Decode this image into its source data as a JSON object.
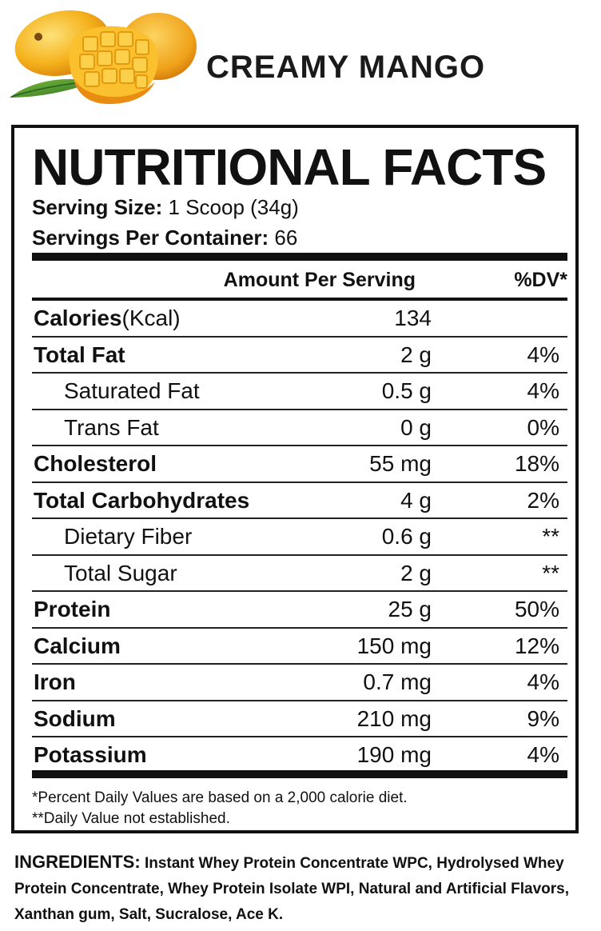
{
  "flavor": "CREAMY MANGO",
  "panel": {
    "title": "NUTRITIONAL FACTS",
    "serving_size_label": "Serving Size:",
    "serving_size_value": " 1 Scoop (34g)",
    "servings_label": "Servings Per Container:",
    "servings_value": " 66",
    "col_amount": "Amount Per Serving",
    "col_dv": "%DV*",
    "rows": [
      {
        "name": "Calories",
        "unit": "(Kcal)",
        "amount": "134",
        "dv": ""
      },
      {
        "name": "Total Fat",
        "amount": "2 g",
        "dv": "4%"
      },
      {
        "name": "Saturated Fat",
        "amount": "0.5 g",
        "dv": "4%"
      },
      {
        "name": "Trans Fat",
        "amount": "0 g",
        "dv": "0%"
      },
      {
        "name": "Cholesterol",
        "amount": "55 mg",
        "dv": "18%"
      },
      {
        "name": "Total Carbohydrates",
        "amount": "4 g",
        "dv": "2%"
      },
      {
        "name": "Dietary Fiber",
        "amount": "0.6 g",
        "dv": "**"
      },
      {
        "name": "Total Sugar",
        "amount": "2 g",
        "dv": "**"
      },
      {
        "name": "Protein",
        "amount": "25 g",
        "dv": "50%"
      },
      {
        "name": "Calcium",
        "amount": "150 mg",
        "dv": "12%"
      },
      {
        "name": "Iron",
        "amount": "0.7 mg",
        "dv": "4%"
      },
      {
        "name": "Sodium",
        "amount": "210 mg",
        "dv": "9%"
      },
      {
        "name": "Potassium",
        "amount": "190 mg",
        "dv": "4%"
      }
    ],
    "footnote_1": "*Percent Daily Values are based on a 2,000 calorie diet.",
    "footnote_2": "**Daily Value not established."
  },
  "ingredients": {
    "label": "INGREDIENTS:",
    "text": " Instant Whey Protein Concentrate WPC, Hydrolysed Whey Protein Concentrate, Whey Protein Isolate WPI, Natural and Artificial Flavors, Xanthan gum, Salt, Sucralose, Ace K."
  },
  "colors": {
    "mango_yellow": "#f5b21c",
    "mango_orange": "#e88d12",
    "leaf_green": "#3f8a2b",
    "ink": "#111111"
  },
  "icons": {
    "hero_image": "mango-fruit-illustration"
  }
}
